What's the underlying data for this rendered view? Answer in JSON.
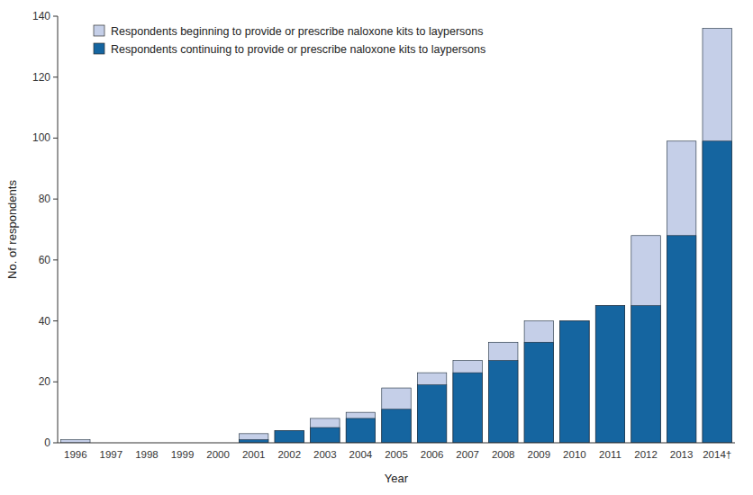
{
  "chart_data": {
    "type": "bar",
    "xlabel": "Year",
    "ylabel": "No. of respondents",
    "categories": [
      "1996",
      "1997",
      "1998",
      "1999",
      "2000",
      "2001",
      "2002",
      "2003",
      "2004",
      "2005",
      "2006",
      "2007",
      "2008",
      "2009",
      "2010",
      "2011",
      "2012",
      "2013",
      "2014†"
    ],
    "series": [
      {
        "name": "Respondents beginning to provide or prescribe naloxone kits to laypersons",
        "color": "#c5cfe8",
        "values": [
          1,
          0,
          0,
          0,
          0,
          3,
          4,
          8,
          10,
          18,
          23,
          27,
          33,
          40,
          40,
          45,
          68,
          99,
          136
        ]
      },
      {
        "name": "Respondents continuing to provide or prescribe naloxone kits to laypersons",
        "color": "#1565a0",
        "values": [
          0,
          0,
          0,
          0,
          0,
          1,
          4,
          5,
          8,
          11,
          19,
          23,
          27,
          33,
          40,
          45,
          45,
          68,
          99
        ]
      }
    ],
    "ylim": [
      0,
      140
    ],
    "yticks": [
      0,
      20,
      40,
      60,
      80,
      100,
      120,
      140
    ],
    "grid": false,
    "legend": "upper left"
  }
}
